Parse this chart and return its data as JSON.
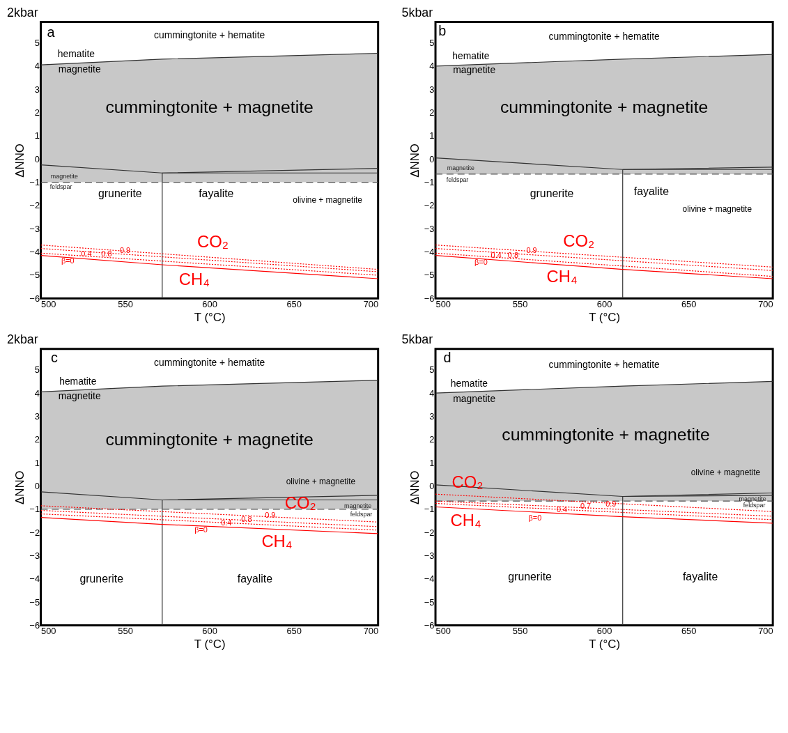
{
  "chart_data": [
    {
      "type": "line",
      "title": "2kbar",
      "xlabel": "T (°C)",
      "ylabel": "ΔNNO",
      "xlim": [
        500,
        700
      ],
      "ylim": [
        -6,
        5.9
      ],
      "xticks": [
        500,
        550,
        600,
        650,
        700
      ],
      "yticks": [
        -6,
        -5,
        -4,
        -3,
        -2,
        -1,
        0,
        1,
        2,
        3,
        4,
        5
      ],
      "grid": false,
      "series": [
        {
          "color": "#333333",
          "x": [
            500,
            572,
            700
          ],
          "values": [
            4.05,
            4.3,
            4.55
          ],
          "lower": [
            -1,
            -1,
            -1
          ],
          "upper": [
            4.05,
            4.3,
            4.55
          ]
        },
        {
          "color": "#333333",
          "x": [
            500,
            572,
            700
          ],
          "values": [
            -0.25,
            -0.6,
            -0.4
          ]
        },
        {
          "color": "#333333",
          "x": [
            572,
            700
          ],
          "values": [
            -0.6,
            -0.6
          ]
        },
        {
          "color": "#333333",
          "x": [
            572,
            572
          ],
          "values": [
            -6,
            -0.6
          ]
        },
        {
          "color": "#555555",
          "line_style": "dashed",
          "x": [
            500,
            700
          ],
          "values": [
            -1,
            -1
          ]
        },
        {
          "color": "#ff0000",
          "x": [
            500,
            572,
            700
          ],
          "values": [
            -4.15,
            -4.55,
            -5.15
          ]
        },
        {
          "color": "#ff0000",
          "line_style": "dotted",
          "x": [
            500,
            700
          ],
          "values": [
            -4.05,
            -5.0
          ]
        },
        {
          "color": "#ff0000",
          "line_style": "dotted",
          "x": [
            500,
            700
          ],
          "values": [
            -3.85,
            -4.85
          ]
        },
        {
          "color": "#ff0000",
          "line_style": "dotted",
          "x": [
            500,
            700
          ],
          "values": [
            -3.7,
            -4.75
          ]
        }
      ],
      "annotations": [
        "a",
        "cummingtonite + hematite",
        "hematite",
        "magnetite",
        "cummingtonite + magnetite",
        "magnetite",
        "feldspar",
        "grunerite",
        "fayalite",
        "olivine + magnetite",
        "CO₂",
        "CH₄",
        "β=0",
        "0.4",
        "0.8",
        "0.9"
      ]
    },
    {
      "type": "line",
      "title": "5kbar",
      "xlabel": "T (°C)",
      "ylabel": "ΔNNO",
      "xlim": [
        500,
        700
      ],
      "ylim": [
        -6,
        5.9
      ],
      "xticks": [
        500,
        550,
        600,
        650,
        700
      ],
      "yticks": [
        -6,
        -5,
        -4,
        -3,
        -2,
        -1,
        0,
        1,
        2,
        3,
        4,
        5
      ],
      "grid": false,
      "series": [
        {
          "color": "#333333",
          "x": [
            500,
            611,
            700
          ],
          "values": [
            4.0,
            4.3,
            4.5
          ],
          "lower": [
            -0.65,
            -0.65,
            -0.65
          ],
          "upper": [
            4.0,
            4.3,
            4.5
          ]
        },
        {
          "color": "#333333",
          "x": [
            500,
            611,
            700
          ],
          "values": [
            0.05,
            -0.45,
            -0.35
          ]
        },
        {
          "color": "#333333",
          "x": [
            611,
            700
          ],
          "values": [
            -0.45,
            -0.45
          ]
        },
        {
          "color": "#333333",
          "x": [
            611,
            611
          ],
          "values": [
            -6,
            -0.45
          ]
        },
        {
          "color": "#555555",
          "line_style": "dashed",
          "x": [
            500,
            700
          ],
          "values": [
            -0.65,
            -0.65
          ]
        },
        {
          "color": "#ff0000",
          "x": [
            500,
            611,
            700
          ],
          "values": [
            -4.15,
            -4.75,
            -5.15
          ]
        },
        {
          "color": "#ff0000",
          "line_style": "dotted",
          "x": [
            500,
            700
          ],
          "values": [
            -4.05,
            -5.05
          ]
        },
        {
          "color": "#ff0000",
          "line_style": "dotted",
          "x": [
            500,
            700
          ],
          "values": [
            -3.85,
            -4.8
          ]
        },
        {
          "color": "#ff0000",
          "line_style": "dotted",
          "x": [
            500,
            700
          ],
          "values": [
            -3.7,
            -4.65
          ]
        }
      ],
      "annotations": [
        "b",
        "cummingtonite + hematite",
        "hematite",
        "magnetite",
        "cummingtonite + magnetite",
        "magnetite",
        "feldspar",
        "grunerite",
        "fayalite",
        "olivine + magnetite",
        "CO₂",
        "CH₄",
        "β=0",
        "0.4",
        "0.8",
        "0.9"
      ]
    },
    {
      "type": "line",
      "title": "2kbar",
      "xlabel": "T (°C)",
      "ylabel": "ΔNNO",
      "xlim": [
        500,
        700
      ],
      "ylim": [
        -6,
        5.9
      ],
      "xticks": [
        500,
        550,
        600,
        650,
        700
      ],
      "yticks": [
        -6,
        -5,
        -4,
        -3,
        -2,
        -1,
        0,
        1,
        2,
        3,
        4,
        5
      ],
      "grid": false,
      "series": [
        {
          "color": "#333333",
          "x": [
            500,
            572,
            700
          ],
          "values": [
            4.05,
            4.3,
            4.55
          ],
          "lower": [
            -1,
            -1,
            -1
          ],
          "upper": [
            4.05,
            4.3,
            4.55
          ]
        },
        {
          "color": "#333333",
          "x": [
            500,
            572,
            700
          ],
          "values": [
            -0.25,
            -0.6,
            -0.4
          ]
        },
        {
          "color": "#333333",
          "x": [
            572,
            700
          ],
          "values": [
            -0.6,
            -0.6
          ]
        },
        {
          "color": "#333333",
          "x": [
            572,
            572
          ],
          "values": [
            -6,
            -0.6
          ]
        },
        {
          "color": "#555555",
          "line_style": "dashed",
          "x": [
            500,
            700
          ],
          "values": [
            -1,
            -1
          ]
        },
        {
          "color": "#ff0000",
          "x": [
            500,
            572,
            700
          ],
          "values": [
            -1.35,
            -1.65,
            -2.05
          ]
        },
        {
          "color": "#ff0000",
          "line_style": "dotted",
          "x": [
            500,
            700
          ],
          "values": [
            -1.2,
            -1.9
          ]
        },
        {
          "color": "#ff0000",
          "line_style": "dotted",
          "x": [
            500,
            700
          ],
          "values": [
            -1.05,
            -1.75
          ]
        },
        {
          "color": "#ff0000",
          "line_style": "dotted",
          "x": [
            500,
            700
          ],
          "values": [
            -0.85,
            -1.55
          ]
        }
      ],
      "annotations": [
        "c",
        "cummingtonite + hematite",
        "hematite",
        "magnetite",
        "cummingtonite + magnetite",
        "magnetite",
        "feldspar",
        "grunerite",
        "fayalite",
        "olivine + magnetite",
        "CO₂",
        "CH₄",
        "β=0",
        "0.4",
        "0.8",
        "0.9"
      ]
    },
    {
      "type": "line",
      "title": "5kbar",
      "xlabel": "T (°C)",
      "ylabel": "ΔNNO",
      "xlim": [
        500,
        700
      ],
      "ylim": [
        -6,
        5.9
      ],
      "xticks": [
        500,
        550,
        600,
        650,
        700
      ],
      "yticks": [
        -6,
        -5,
        -4,
        -3,
        -2,
        -1,
        0,
        1,
        2,
        3,
        4,
        5
      ],
      "grid": false,
      "series": [
        {
          "color": "#333333",
          "x": [
            500,
            611,
            700
          ],
          "values": [
            4.0,
            4.3,
            4.5
          ],
          "lower": [
            -0.65,
            -0.65,
            -0.65
          ],
          "upper": [
            4.0,
            4.3,
            4.5
          ]
        },
        {
          "color": "#333333",
          "x": [
            500,
            611,
            700
          ],
          "values": [
            0.05,
            -0.45,
            -0.3
          ]
        },
        {
          "color": "#333333",
          "x": [
            611,
            700
          ],
          "values": [
            -0.45,
            -0.4
          ]
        },
        {
          "color": "#333333",
          "x": [
            611,
            611
          ],
          "values": [
            -6,
            -0.45
          ]
        },
        {
          "color": "#555555",
          "line_style": "dashed",
          "x": [
            500,
            700
          ],
          "values": [
            -0.65,
            -0.65
          ]
        },
        {
          "color": "#ff0000",
          "x": [
            500,
            611,
            700
          ],
          "values": [
            -0.9,
            -1.32,
            -1.6
          ]
        },
        {
          "color": "#ff0000",
          "line_style": "dotted",
          "x": [
            500,
            700
          ],
          "values": [
            -0.75,
            -1.45
          ]
        },
        {
          "color": "#ff0000",
          "line_style": "dotted",
          "x": [
            500,
            700
          ],
          "values": [
            -0.65,
            -1.3
          ]
        },
        {
          "color": "#ff0000",
          "line_style": "dotted",
          "x": [
            500,
            700
          ],
          "values": [
            -0.35,
            -1.1
          ]
        }
      ],
      "annotations": [
        "d",
        "cummingtonite + hematite",
        "hematite",
        "magnetite",
        "cummingtonite + magnetite",
        "magnetite",
        "feldspar",
        "grunerite",
        "fayalite",
        "olivine + magnetite",
        "CO₂",
        "CH₄",
        "β=0",
        "0.4",
        "0.7",
        "0.9"
      ]
    }
  ]
}
